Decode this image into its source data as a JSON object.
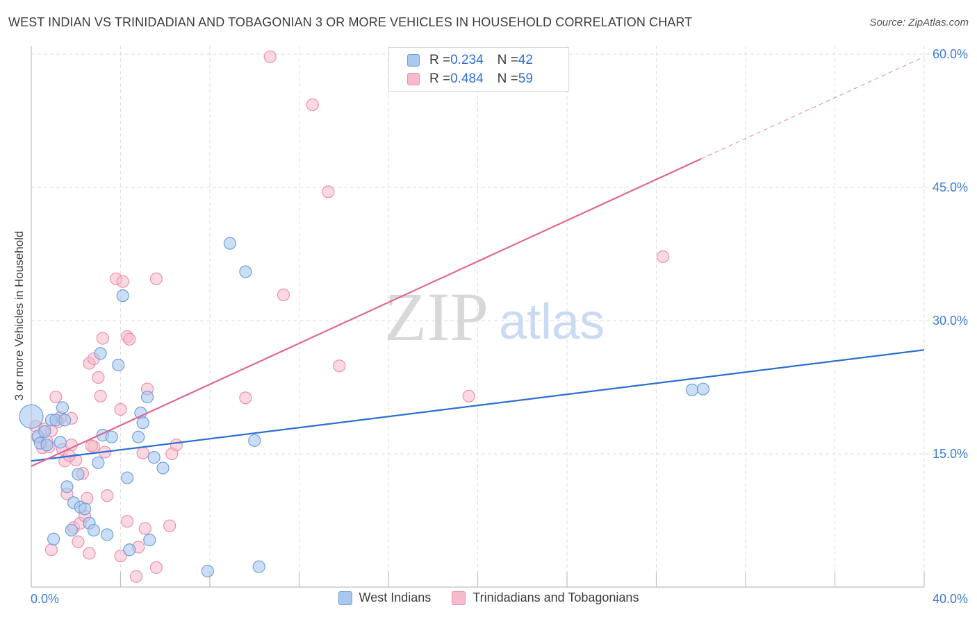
{
  "title": "WEST INDIAN VS TRINIDADIAN AND TOBAGONIAN 3 OR MORE VEHICLES IN HOUSEHOLD CORRELATION CHART",
  "source": "Source: ZipAtlas.com",
  "watermark": {
    "zip": "ZIP",
    "atlas": "atlas"
  },
  "legend": {
    "r_label": "R = ",
    "n_label": "N = ",
    "series": [
      {
        "r": "0.234",
        "n": "42"
      },
      {
        "r": "0.484",
        "n": "59"
      }
    ]
  },
  "bottom_legend": [
    "West Indians",
    "Trinidadians and Tobagonians"
  ],
  "colors": {
    "blue_fill": "#a9c8f0",
    "blue_stroke": "#6f9fdc",
    "blue_line": "#2a6fd0",
    "pink_fill": "#f7b9cb",
    "pink_stroke": "#ec8fab",
    "pink_line": "#e0668e",
    "tick_text": "#3d7bd8",
    "grid": "#dedede"
  },
  "chart_data": {
    "type": "scatter",
    "title": "WEST INDIAN VS TRINIDADIAN AND TOBAGONIAN 3 OR MORE VEHICLES IN HOUSEHOLD CORRELATION CHART",
    "xlabel": "",
    "ylabel": "3 or more Vehicles in Household",
    "xlim": [
      0,
      40
    ],
    "ylim": [
      0,
      60
    ],
    "x_tick_labels": [
      "0.0%",
      "40.0%"
    ],
    "y_ticks": [
      15,
      30,
      45,
      60
    ],
    "y_tick_labels": [
      "15.0%",
      "30.0%",
      "45.0%",
      "60.0%"
    ],
    "grid": true,
    "legend_position": "top-center",
    "series": [
      {
        "name": "West Indians",
        "r": 0.234,
        "n": 42,
        "trend": {
          "x0": 0,
          "y0": 14.2,
          "x1": 40,
          "y1": 26.7
        },
        "points": [
          [
            0.0,
            19.2
          ],
          [
            0.3,
            17.0
          ],
          [
            0.4,
            16.2
          ],
          [
            0.6,
            17.5
          ],
          [
            0.7,
            16.0
          ],
          [
            0.9,
            18.8
          ],
          [
            1.1,
            18.8
          ],
          [
            1.3,
            16.3
          ],
          [
            1.4,
            20.2
          ],
          [
            1.5,
            18.8
          ],
          [
            1.6,
            11.3
          ],
          [
            1.9,
            9.5
          ],
          [
            2.1,
            12.7
          ],
          [
            2.2,
            9.0
          ],
          [
            2.4,
            8.8
          ],
          [
            2.6,
            7.2
          ],
          [
            2.8,
            6.4
          ],
          [
            3.0,
            14.0
          ],
          [
            3.1,
            26.3
          ],
          [
            3.2,
            17.1
          ],
          [
            3.4,
            5.9
          ],
          [
            3.6,
            16.9
          ],
          [
            3.9,
            25.0
          ],
          [
            4.1,
            32.8
          ],
          [
            4.3,
            12.3
          ],
          [
            4.8,
            16.9
          ],
          [
            4.9,
            19.6
          ],
          [
            5.0,
            18.5
          ],
          [
            5.2,
            21.4
          ],
          [
            5.5,
            14.6
          ],
          [
            5.9,
            13.4
          ],
          [
            8.9,
            38.7
          ],
          [
            9.6,
            35.5
          ],
          [
            10.0,
            16.5
          ],
          [
            10.2,
            2.3
          ],
          [
            7.9,
            1.8
          ],
          [
            4.4,
            4.2
          ],
          [
            5.3,
            5.3
          ],
          [
            1.0,
            5.4
          ],
          [
            1.8,
            6.4
          ],
          [
            29.6,
            22.2
          ],
          [
            30.1,
            22.3
          ]
        ]
      },
      {
        "name": "Trinidadians and Tobagonians",
        "r": 0.484,
        "n": 59,
        "trend": {
          "x0": 0,
          "y0": 13.6,
          "x1": 30.0,
          "y1": 48.2,
          "dash_to_x": 40,
          "dash_to_y": 59.7
        },
        "points": [
          [
            0.2,
            18.1
          ],
          [
            0.3,
            16.8
          ],
          [
            0.5,
            15.7
          ],
          [
            0.6,
            17.8
          ],
          [
            0.7,
            16.4
          ],
          [
            0.8,
            15.8
          ],
          [
            0.9,
            4.2
          ],
          [
            1.1,
            21.4
          ],
          [
            1.2,
            18.6
          ],
          [
            1.4,
            15.5
          ],
          [
            1.5,
            14.2
          ],
          [
            1.6,
            10.5
          ],
          [
            1.8,
            19.0
          ],
          [
            1.8,
            16.0
          ],
          [
            1.9,
            6.7
          ],
          [
            2.0,
            14.3
          ],
          [
            2.1,
            5.1
          ],
          [
            2.2,
            7.2
          ],
          [
            2.3,
            12.8
          ],
          [
            2.4,
            8.0
          ],
          [
            2.5,
            10.0
          ],
          [
            2.6,
            3.8
          ],
          [
            2.6,
            25.2
          ],
          [
            2.8,
            25.7
          ],
          [
            2.8,
            15.8
          ],
          [
            3.0,
            23.6
          ],
          [
            3.1,
            21.5
          ],
          [
            3.2,
            28.0
          ],
          [
            3.3,
            15.2
          ],
          [
            3.4,
            10.3
          ],
          [
            3.8,
            34.7
          ],
          [
            4.1,
            34.4
          ],
          [
            4.0,
            3.5
          ],
          [
            4.3,
            28.2
          ],
          [
            4.0,
            20.0
          ],
          [
            4.3,
            7.4
          ],
          [
            4.4,
            27.9
          ],
          [
            4.7,
            1.2
          ],
          [
            4.8,
            4.5
          ],
          [
            5.0,
            15.1
          ],
          [
            5.1,
            6.6
          ],
          [
            5.2,
            22.3
          ],
          [
            5.6,
            2.2
          ],
          [
            5.6,
            34.7
          ],
          [
            6.2,
            6.9
          ],
          [
            6.3,
            15.0
          ],
          [
            6.5,
            16.0
          ],
          [
            9.6,
            21.3
          ],
          [
            11.3,
            32.9
          ],
          [
            10.7,
            59.7
          ],
          [
            12.6,
            54.3
          ],
          [
            13.3,
            44.5
          ],
          [
            13.8,
            24.9
          ],
          [
            19.6,
            21.5
          ],
          [
            28.3,
            37.2
          ],
          [
            1.3,
            19.1
          ],
          [
            0.9,
            17.6
          ],
          [
            2.7,
            15.9
          ],
          [
            1.7,
            14.8
          ]
        ]
      }
    ]
  }
}
